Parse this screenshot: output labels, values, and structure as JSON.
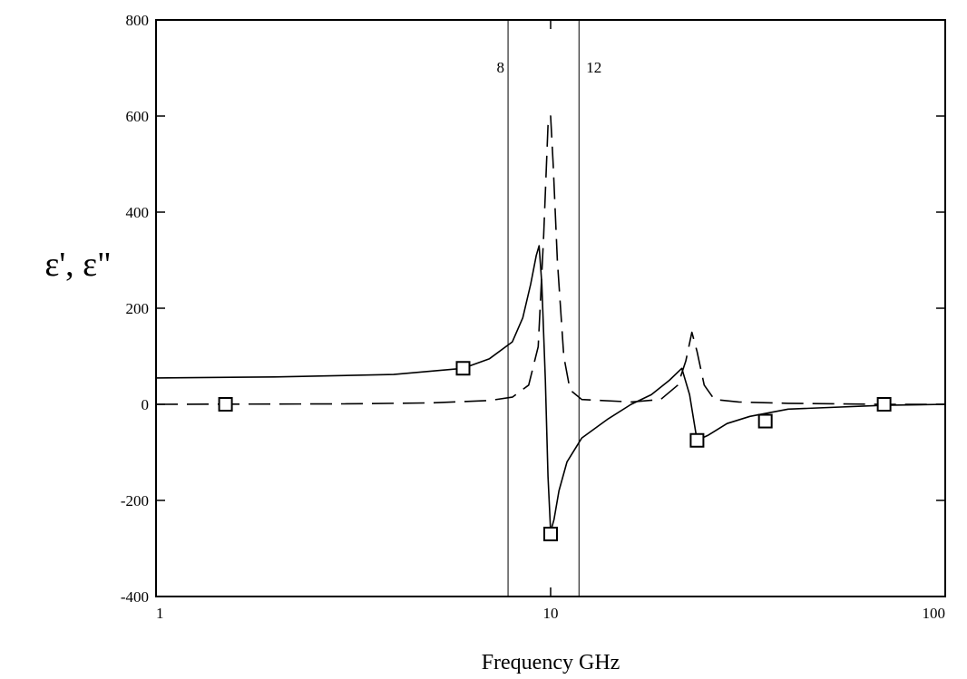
{
  "chart_data": {
    "type": "line",
    "title": "",
    "xlabel": "Frequency GHz",
    "ylabel": "ε', ε\"",
    "x_scale": "log",
    "xlim": [
      1,
      100
    ],
    "ylim": [
      -400,
      800
    ],
    "x_ticks": [
      1,
      10,
      100
    ],
    "x_tick_labels": [
      "1",
      "10",
      "100"
    ],
    "y_ticks": [
      -400,
      -200,
      0,
      200,
      400,
      600,
      800
    ],
    "y_tick_labels": [
      "-400",
      "-200",
      "0",
      "200",
      "400",
      "600",
      "800"
    ],
    "grid": false,
    "legend": "none",
    "band_markers": [
      {
        "x": 7.8,
        "label": "8"
      },
      {
        "x": 11.8,
        "label": "12"
      }
    ],
    "series": [
      {
        "style": "solid",
        "x": [
          1,
          2,
          4,
          6,
          7,
          8,
          8.5,
          8.9,
          9.2,
          9.35,
          9.5,
          9.7,
          9.85,
          10.0,
          10.2,
          10.5,
          11,
          12,
          14,
          16,
          18,
          20,
          21.5,
          22.5,
          23.5,
          25,
          28,
          32,
          40,
          70,
          100
        ],
        "y": [
          55,
          57,
          62,
          75,
          95,
          130,
          180,
          250,
          310,
          330,
          250,
          50,
          -150,
          -265,
          -240,
          -180,
          -120,
          -70,
          -30,
          0,
          20,
          50,
          75,
          20,
          -75,
          -65,
          -40,
          -25,
          -10,
          -2,
          0
        ]
      },
      {
        "style": "dashed",
        "x": [
          1,
          3,
          5,
          7,
          8,
          8.8,
          9.3,
          9.6,
          9.85,
          10.0,
          10.15,
          10.4,
          10.8,
          11.2,
          12,
          16,
          19,
          21,
          22,
          22.8,
          23.5,
          24.5,
          26,
          30,
          40,
          70,
          100
        ],
        "y": [
          0,
          1,
          3,
          8,
          15,
          40,
          120,
          350,
          580,
          600,
          500,
          300,
          100,
          30,
          10,
          5,
          10,
          40,
          90,
          150,
          110,
          40,
          10,
          5,
          2,
          0,
          0
        ]
      }
    ],
    "markers": {
      "shape": "square",
      "x": [
        1.5,
        6.0,
        10.0,
        23.5,
        35,
        70
      ],
      "y": [
        0,
        75,
        -270,
        -75,
        -35,
        0
      ]
    }
  }
}
